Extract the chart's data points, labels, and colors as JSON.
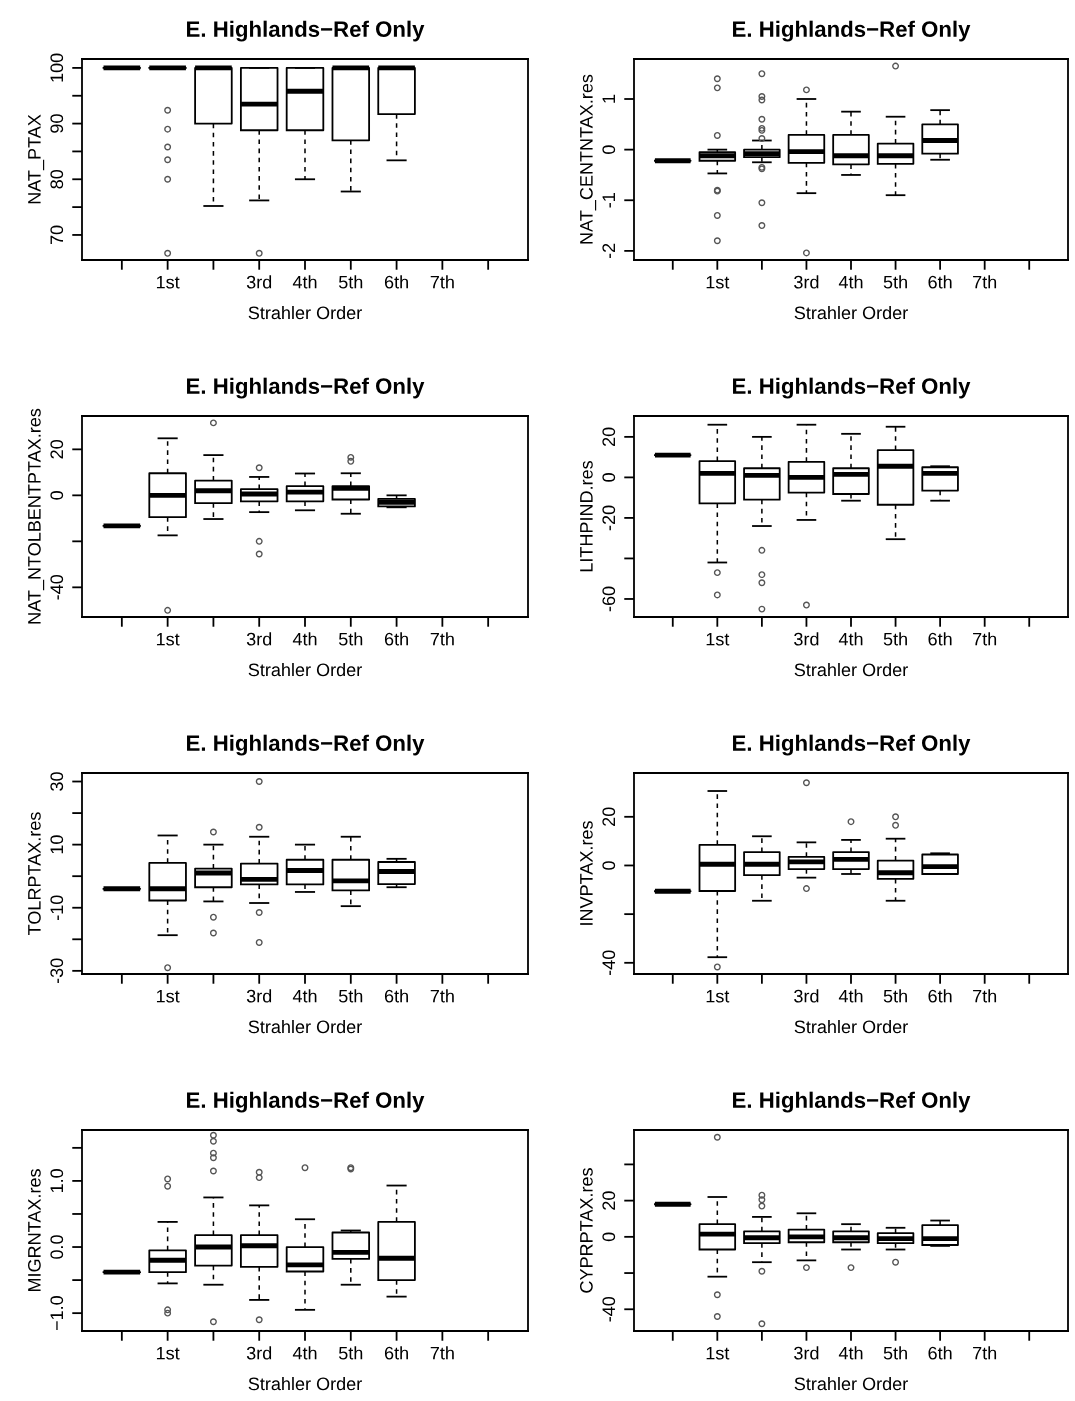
{
  "chart_data": [
    {
      "type": "box",
      "title": "E. Highlands−Ref Only",
      "xlabel": "Strahler Order",
      "ylabel": "NAT_PTAX",
      "color": "#000000",
      "marker": "circle",
      "categories": [
        null,
        "1st",
        null,
        "3rd",
        "4th",
        "5th",
        "6th",
        "7th",
        null
      ],
      "ylim": [
        65.5,
        101.6
      ],
      "yticks": [
        70,
        {
          "value": 75,
          "label": null
        },
        80,
        {
          "value": 85,
          "label": null
        },
        90,
        {
          "value": 95,
          "label": null
        },
        100
      ],
      "boxes": [
        {
          "low": 100,
          "q1": 100,
          "median": 100,
          "q3": 100,
          "high": 100
        },
        {
          "low": 100,
          "q1": 100,
          "median": 100,
          "q3": 100,
          "high": 100,
          "outliers": [
            92.4,
            89,
            85.8,
            83.5,
            80,
            66.7
          ]
        },
        {
          "low": 75.2,
          "q1": 90,
          "median": 100,
          "q3": 100,
          "high": 100
        },
        {
          "low": 76.2,
          "q1": 88.8,
          "median": 93.5,
          "q3": 100,
          "high": 100,
          "outliers": [
            66.7
          ]
        },
        {
          "low": 80,
          "q1": 88.8,
          "median": 95.8,
          "q3": 100,
          "high": 100
        },
        {
          "low": 77.8,
          "q1": 87,
          "median": 100,
          "q3": 100,
          "high": 100
        },
        {
          "low": 83.4,
          "q1": 91.7,
          "median": 100,
          "q3": 100,
          "high": 100
        },
        null,
        null
      ]
    },
    {
      "type": "box",
      "title": "E. Highlands−Ref Only",
      "xlabel": "Strahler Order",
      "ylabel": "NAT_CENTNTAX.res",
      "color": "#000000",
      "marker": "circle",
      "categories": [
        null,
        "1st",
        null,
        "3rd",
        "4th",
        "5th",
        "6th",
        "7th",
        null
      ],
      "ylim": [
        -2.18,
        1.79
      ],
      "yticks": [
        -2,
        -1,
        0,
        1
      ],
      "boxes": [
        {
          "low": -0.22,
          "q1": -0.22,
          "median": -0.22,
          "q3": -0.22,
          "high": -0.22
        },
        {
          "low": -0.47,
          "q1": -0.22,
          "median": -0.12,
          "q3": -0.05,
          "high": 0,
          "outliers": [
            1.4,
            1.22,
            0.28,
            -0.8,
            -0.82,
            -1.3,
            -1.8
          ]
        },
        {
          "low": -0.25,
          "q1": -0.15,
          "median": -0.08,
          "q3": 0,
          "high": 0.18,
          "outliers": [
            1.5,
            1.05,
            0.98,
            0.6,
            0.42,
            0.38,
            0.22,
            -0.35,
            -0.38,
            -1.05,
            -1.5
          ]
        },
        {
          "low": -0.86,
          "q1": -0.26,
          "median": -0.04,
          "q3": 0.29,
          "high": 1,
          "outliers": [
            1.18,
            -2.04
          ]
        },
        {
          "low": -0.5,
          "q1": -0.29,
          "median": -0.12,
          "q3": 0.29,
          "high": 0.75
        },
        {
          "low": -0.9,
          "q1": -0.28,
          "median": -0.12,
          "q3": 0.12,
          "high": 0.65,
          "outliers": [
            1.65
          ]
        },
        {
          "low": -0.2,
          "q1": -0.08,
          "median": 0.18,
          "q3": 0.5,
          "high": 0.78
        },
        null,
        null
      ]
    },
    {
      "type": "box",
      "title": "E. Highlands−Ref Only",
      "xlabel": "Strahler Order",
      "ylabel": "NAT_NTOLBENTPTAX.res",
      "color": "#000000",
      "marker": "circle",
      "categories": [
        null,
        "1st",
        null,
        "3rd",
        "4th",
        "5th",
        "6th",
        "7th",
        null
      ],
      "ylim": [
        -52.9,
        34.5
      ],
      "yticks": [
        -40,
        {
          "value": -20,
          "label": null
        },
        0,
        20
      ],
      "boxes": [
        {
          "low": -13.3,
          "q1": -13.3,
          "median": -13.3,
          "q3": -13.3,
          "high": -13.3
        },
        {
          "low": -17.4,
          "q1": -9.5,
          "median": 0,
          "q3": 9.6,
          "high": 24.8,
          "outliers": [
            -50
          ]
        },
        {
          "low": -10.3,
          "q1": -3.4,
          "median": 2,
          "q3": 6.4,
          "high": 17.5,
          "outliers": [
            31.5
          ]
        },
        {
          "low": -7.3,
          "q1": -2.6,
          "median": 0.6,
          "q3": 2.7,
          "high": 8,
          "outliers": [
            12,
            -20,
            -25.5
          ]
        },
        {
          "low": -6.5,
          "q1": -2.6,
          "median": 1.4,
          "q3": 4,
          "high": 9.5
        },
        {
          "low": -8,
          "q1": -1.8,
          "median": 3,
          "q3": 4,
          "high": 9.6,
          "outliers": [
            16.5,
            14.8
          ]
        },
        {
          "low": -5.2,
          "q1": -4.8,
          "median": -3,
          "q3": -1.5,
          "high": 0
        },
        null,
        null
      ]
    },
    {
      "type": "box",
      "title": "E. Highlands−Ref Only",
      "xlabel": "Strahler Order",
      "ylabel": "LITHPIND.res",
      "color": "#000000",
      "marker": "circle",
      "categories": [
        null,
        "1st",
        null,
        "3rd",
        "4th",
        "5th",
        "6th",
        "7th",
        null
      ],
      "ylim": [
        -68.9,
        30.3
      ],
      "yticks": [
        -60,
        {
          "value": -40,
          "label": null
        },
        -20,
        0,
        20
      ],
      "boxes": [
        {
          "low": 11,
          "q1": 11,
          "median": 11,
          "q3": 11,
          "high": 11
        },
        {
          "low": -42,
          "q1": -12.8,
          "median": 2,
          "q3": 8,
          "high": 26,
          "outliers": [
            -47,
            -58
          ]
        },
        {
          "low": -24,
          "q1": -11,
          "median": 1,
          "q3": 4.5,
          "high": 20,
          "outliers": [
            -36,
            -48,
            -52,
            -65
          ]
        },
        {
          "low": -21,
          "q1": -7.5,
          "median": 0,
          "q3": 7.7,
          "high": 26,
          "outliers": [
            -63
          ]
        },
        {
          "low": -11.5,
          "q1": -8.2,
          "median": 1.5,
          "q3": 4.5,
          "high": 21.5
        },
        {
          "low": -30.5,
          "q1": -13.5,
          "median": 5.5,
          "q3": 13.5,
          "high": 25
        },
        {
          "low": -11.5,
          "q1": -6.5,
          "median": 2,
          "q3": 5,
          "high": 5.5
        },
        null,
        null
      ]
    },
    {
      "type": "box",
      "title": "E. Highlands−Ref Only",
      "xlabel": "Strahler Order",
      "ylabel": "TOLRPTAX.res",
      "color": "#000000",
      "marker": "circle",
      "categories": [
        null,
        "1st",
        null,
        "3rd",
        "4th",
        "5th",
        "6th",
        "7th",
        null
      ],
      "ylim": [
        -31,
        32.7
      ],
      "yticks": [
        -30,
        {
          "value": -20,
          "label": null
        },
        -10,
        {
          "value": 0,
          "label": null
        },
        10,
        {
          "value": 20,
          "label": null
        },
        30
      ],
      "boxes": [
        {
          "low": -4,
          "q1": -4,
          "median": -4,
          "q3": -4,
          "high": -4
        },
        {
          "low": -18.7,
          "q1": -7.7,
          "median": -4,
          "q3": 4.2,
          "high": 12.9,
          "outliers": [
            -29
          ]
        },
        {
          "low": -8,
          "q1": -3.5,
          "median": 1,
          "q3": 2.4,
          "high": 10,
          "outliers": [
            14,
            -13,
            -18
          ]
        },
        {
          "low": -8.5,
          "q1": -2.6,
          "median": -1,
          "q3": 4,
          "high": 12.5,
          "outliers": [
            30,
            15.5,
            -11.5,
            -21
          ]
        },
        {
          "low": -5,
          "q1": -2.6,
          "median": 1.8,
          "q3": 5.2,
          "high": 10
        },
        {
          "low": -9.5,
          "q1": -4.5,
          "median": -1.5,
          "q3": 5.2,
          "high": 12.5
        },
        {
          "low": -3.5,
          "q1": -2.5,
          "median": 1.5,
          "q3": 4.5,
          "high": 5.5
        },
        null,
        null
      ]
    },
    {
      "type": "box",
      "title": "E. Highlands−Ref Only",
      "xlabel": "Strahler Order",
      "ylabel": "INVPTAX.res",
      "color": "#000000",
      "marker": "circle",
      "categories": [
        null,
        "1st",
        null,
        "3rd",
        "4th",
        "5th",
        "6th",
        "7th",
        null
      ],
      "ylim": [
        -44.6,
        38
      ],
      "yticks": [
        -40,
        {
          "value": -20,
          "label": null
        },
        0,
        20
      ],
      "boxes": [
        {
          "low": -10.6,
          "q1": -10.6,
          "median": -10.6,
          "q3": -10.6,
          "high": -10.6
        },
        {
          "low": -37.7,
          "q1": -10.5,
          "median": 0.5,
          "q3": 8.5,
          "high": 30.6,
          "outliers": [
            -41.7
          ]
        },
        {
          "low": -14.5,
          "q1": -4,
          "median": 0.5,
          "q3": 5.5,
          "high": 12
        },
        {
          "low": -5,
          "q1": -1.5,
          "median": 1.5,
          "q3": 3.5,
          "high": 9.5,
          "outliers": [
            34,
            -9.5
          ]
        },
        {
          "low": -3.5,
          "q1": -1.5,
          "median": 2.5,
          "q3": 5.5,
          "high": 10.5,
          "outliers": [
            18
          ]
        },
        {
          "low": -14.5,
          "q1": -5.5,
          "median": -3,
          "q3": 2,
          "high": 11,
          "outliers": [
            20,
            16.5
          ]
        },
        {
          "low": -3.5,
          "q1": -3.5,
          "median": -0.5,
          "q3": 4.5,
          "high": 5
        },
        null,
        null
      ]
    },
    {
      "type": "box",
      "title": "E. Highlands−Ref Only",
      "xlabel": "Strahler Order",
      "ylabel": "MIGRNTAX.res",
      "color": "#000000",
      "marker": "circle",
      "categories": [
        null,
        "1st",
        null,
        "3rd",
        "4th",
        "5th",
        "6th",
        "7th",
        null
      ],
      "ylim": [
        -1.27,
        1.77
      ],
      "yticks": [
        {
          "value": -1,
          "label": "−1.0"
        },
        {
          "value": -0.5,
          "label": null
        },
        {
          "value": 0,
          "label": "0.0"
        },
        {
          "value": 0.5,
          "label": null
        },
        {
          "value": 1,
          "label": "1.0"
        },
        {
          "value": 1.5,
          "label": null
        }
      ],
      "boxes": [
        {
          "low": -0.38,
          "q1": -0.38,
          "median": -0.38,
          "q3": -0.38,
          "high": -0.38
        },
        {
          "low": -0.55,
          "q1": -0.38,
          "median": -0.2,
          "q3": -0.05,
          "high": 0.38,
          "outliers": [
            1.03,
            0.92,
            -0.95,
            -1.0
          ]
        },
        {
          "low": -0.57,
          "q1": -0.28,
          "median": 0,
          "q3": 0.18,
          "high": 0.75,
          "outliers": [
            1.69,
            1.6,
            1.42,
            1.35,
            1.15,
            -1.13
          ]
        },
        {
          "low": -0.8,
          "q1": -0.3,
          "median": 0.02,
          "q3": 0.18,
          "high": 0.63,
          "outliers": [
            1.13,
            1.05,
            -1.1
          ]
        },
        {
          "low": -0.95,
          "q1": -0.37,
          "median": -0.27,
          "q3": 0,
          "high": 0.42,
          "outliers": [
            1.2
          ]
        },
        {
          "low": -0.57,
          "q1": -0.18,
          "median": -0.08,
          "q3": 0.22,
          "high": 0.25,
          "outliers": [
            1.2,
            1.18
          ]
        },
        {
          "low": -0.75,
          "q1": -0.5,
          "median": -0.17,
          "q3": 0.38,
          "high": 0.93
        },
        null,
        null
      ]
    },
    {
      "type": "box",
      "title": "E. Highlands−Ref Only",
      "xlabel": "Strahler Order",
      "ylabel": "CYPRPTAX.res",
      "color": "#000000",
      "marker": "circle",
      "categories": [
        null,
        "1st",
        null,
        "3rd",
        "4th",
        "5th",
        "6th",
        "7th",
        null
      ],
      "ylim": [
        -52,
        59
      ],
      "yticks": [
        -40,
        {
          "value": -20,
          "label": null
        },
        0,
        20,
        {
          "value": 40,
          "label": null
        }
      ],
      "boxes": [
        {
          "low": 18,
          "q1": 18,
          "median": 18,
          "q3": 18,
          "high": 18
        },
        {
          "low": -22,
          "q1": -7,
          "median": 1.5,
          "q3": 7,
          "high": 22,
          "outliers": [
            55,
            -32,
            -44
          ]
        },
        {
          "low": -14,
          "q1": -3.5,
          "median": -0.5,
          "q3": 3,
          "high": 11,
          "outliers": [
            23,
            20.5,
            17,
            -19,
            -48
          ]
        },
        {
          "low": -13,
          "q1": -3,
          "median": 0,
          "q3": 4,
          "high": 13,
          "outliers": [
            -17
          ]
        },
        {
          "low": -7,
          "q1": -3,
          "median": -0.5,
          "q3": 3,
          "high": 7,
          "outliers": [
            -17
          ]
        },
        {
          "low": -7,
          "q1": -3.5,
          "median": -1,
          "q3": 2,
          "high": 5,
          "outliers": [
            -14
          ]
        },
        {
          "low": -5,
          "q1": -4.5,
          "median": -1,
          "q3": 6.5,
          "high": 9
        },
        null,
        null
      ]
    }
  ]
}
